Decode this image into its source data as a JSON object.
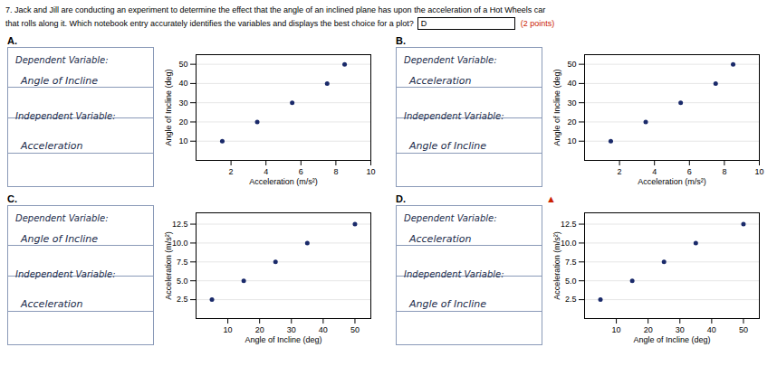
{
  "title": "7. Jack and Jill are conducting an experiment to determine the effect that the angle of an inclined plane has upon the acceleration of a Hot Wheels car",
  "subtitle": "that rolls along it. Which notebook entry accurately identifies the variables and displays the best choice for a plot?",
  "annotations": [
    {
      "text": "D"
    },
    {
      "text": "(2 points)",
      "color": "#cc2200"
    }
  ],
  "chart_data": [
    {
      "type": "scatter",
      "title": "A.",
      "annotations": [
        {
          "text": "Dependent Variable:"
        },
        {
          "text": "Angle of Incline"
        },
        {
          "text": "Independent Variable:"
        },
        {
          "text": "Acceleration"
        }
      ],
      "xlabel": "Acceleration (m/s²)",
      "ylabel": "Angle of Incline (deg)",
      "x": [
        1.5,
        3.5,
        5.5,
        7.5,
        8.5
      ],
      "values": [
        10,
        20,
        30,
        40,
        50
      ],
      "color": "#1a2a6a",
      "xlim": [
        0,
        10
      ],
      "ylim": [
        0,
        55
      ],
      "xticks": [
        2,
        4,
        6,
        8,
        10
      ],
      "yticks": [
        10,
        20,
        30,
        40,
        50
      ],
      "grid": "y"
    },
    {
      "type": "scatter",
      "title": "B.",
      "annotations": [
        {
          "text": "Dependent Variable:"
        },
        {
          "text": "Acceleration"
        },
        {
          "text": "Independent Variable:"
        },
        {
          "text": "Angle of Incline"
        }
      ],
      "xlabel": "Acceleration (m/s²)",
      "ylabel": "Angle of Incline (deg)",
      "x": [
        1.5,
        3.5,
        5.5,
        7.5,
        8.5
      ],
      "values": [
        10,
        20,
        30,
        40,
        50
      ],
      "color": "#1a2a6a",
      "xlim": [
        0,
        10
      ],
      "ylim": [
        0,
        55
      ],
      "xticks": [
        2,
        4,
        6,
        8,
        10
      ],
      "yticks": [
        10,
        20,
        30,
        40,
        50
      ],
      "grid": "y"
    },
    {
      "type": "scatter",
      "title": "C.",
      "annotations": [
        {
          "text": "Dependent Variable:"
        },
        {
          "text": "Angle of Incline"
        },
        {
          "text": "Independent Variable:"
        },
        {
          "text": "Acceleration"
        }
      ],
      "xlabel": "Angle of Incline (deg)",
      "ylabel": "Acceleration (m/s²)",
      "x": [
        5,
        15,
        25,
        35,
        50
      ],
      "values": [
        2.5,
        5.0,
        7.5,
        10.0,
        12.5
      ],
      "color": "#1a2a6a",
      "xlim": [
        0,
        55
      ],
      "ylim": [
        0,
        14
      ],
      "xticks": [
        10,
        20,
        30,
        40,
        50
      ],
      "yticks": [
        2.5,
        {
          "value": 5,
          "label": "5.0"
        },
        7.5,
        {
          "value": 10,
          "label": "10.0"
        },
        12.5
      ],
      "grid": "y"
    },
    {
      "type": "scatter",
      "title": "D.",
      "annotations": [
        {
          "text": "Dependent Variable:"
        },
        {
          "text": "Acceleration"
        },
        {
          "text": "Independent Variable:"
        },
        {
          "text": "Angle of Incline"
        },
        {
          "text": "▲",
          "color": "#cc2200"
        }
      ],
      "xlabel": "Angle of Incline (deg)",
      "ylabel": "Acceleration (m/s²)",
      "x": [
        5,
        15,
        25,
        35,
        50
      ],
      "values": [
        2.5,
        5.0,
        7.5,
        10.0,
        12.5
      ],
      "color": "#1a2a6a",
      "xlim": [
        0,
        55
      ],
      "ylim": [
        0,
        14
      ],
      "xticks": [
        10,
        20,
        30,
        40,
        50
      ],
      "yticks": [
        2.5,
        {
          "value": 5,
          "label": "5.0"
        },
        7.5,
        {
          "value": 10,
          "label": "10.0"
        },
        12.5
      ],
      "grid": "y"
    }
  ]
}
